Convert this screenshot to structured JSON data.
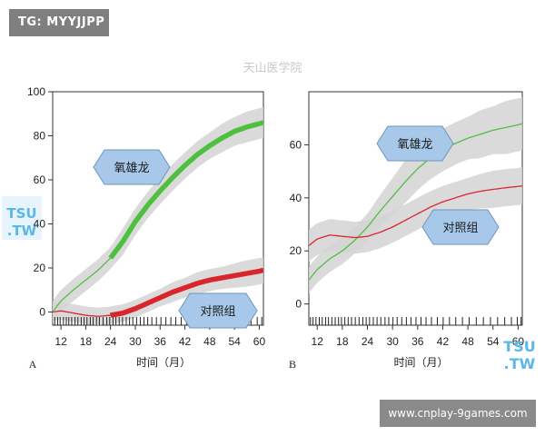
{
  "overlays": {
    "tg_badge": "TG: MYYJJPP",
    "site_badge": "www.cnplay-9games.com",
    "center_watermark": "天山医学院",
    "left_watermark": [
      "TSU",
      ".TW"
    ],
    "right_watermark": [
      "TSU",
      ".TW"
    ]
  },
  "chart_data": [
    {
      "type": "line",
      "panel_label": "A",
      "xlabel": "时间（月）",
      "ylabel": "",
      "xlim": [
        10,
        61
      ],
      "ylim": [
        -6,
        100
      ],
      "xticks": [
        12,
        18,
        24,
        30,
        36,
        42,
        48,
        54,
        60
      ],
      "yticks": [
        0,
        20,
        40,
        60,
        80,
        100
      ],
      "grid": false,
      "colors": {
        "oxandrolone": "#4fbf3f",
        "control": "#d9262c",
        "band": "#d3d3d3",
        "box": "#a7c8e8"
      },
      "callouts": [
        {
          "text": "氧雄龙",
          "series": "oxandrolone",
          "near": "upper-left"
        },
        {
          "text": "对照组",
          "series": "control",
          "near": "lower-right"
        }
      ],
      "series": [
        {
          "name": "氧雄龙",
          "x": [
            10,
            12,
            15,
            18,
            21,
            24,
            27,
            30,
            33,
            36,
            39,
            42,
            45,
            48,
            51,
            54,
            57,
            60,
            61
          ],
          "y": [
            0,
            5,
            10,
            14.5,
            19,
            24.5,
            32,
            41,
            48.5,
            55,
            61,
            66.5,
            71.5,
            75.5,
            79,
            82,
            84,
            85.5,
            86
          ],
          "band": [
            5,
            5,
            5,
            5,
            5,
            5,
            6,
            6,
            6,
            6,
            6,
            6,
            6,
            6,
            6.5,
            6.5,
            7,
            7,
            7
          ],
          "thick_from": 24
        },
        {
          "name": "对照组",
          "x": [
            10,
            12,
            15,
            18,
            21,
            24,
            27,
            30,
            33,
            36,
            39,
            42,
            45,
            48,
            51,
            54,
            57,
            60,
            61
          ],
          "y": [
            0,
            0.5,
            -0.5,
            -1.5,
            -2,
            -1.5,
            -0.5,
            1.5,
            4,
            6.5,
            9,
            11,
            13,
            14.5,
            15.5,
            16.5,
            17.5,
            18.5,
            19
          ],
          "band": [
            4,
            4,
            4,
            4,
            4,
            4,
            4,
            4,
            4,
            4,
            4.5,
            4.5,
            5,
            5,
            5,
            5.5,
            6,
            6,
            6
          ],
          "thick_from": 24
        }
      ],
      "rug_x": [
        10.5,
        11.2,
        11.8,
        12.6,
        13.3,
        13.9,
        14.6,
        15.4,
        16.1,
        16.9,
        17.6,
        18.3,
        19.1,
        19.8,
        20.6,
        21.3,
        22.2,
        23.1,
        23.8,
        24.6,
        25.3,
        26.1,
        26.9,
        27.8,
        28.6,
        29.4,
        30.3,
        31.2,
        32.1,
        33.0,
        34.0,
        35.1,
        36.2,
        37.4,
        38.6,
        39.8,
        41.1,
        42.4,
        43.8,
        45.1,
        46.6,
        48.1,
        49.7,
        51.3,
        52.9,
        54.6,
        56.3,
        58.0,
        59.5,
        60.6
      ]
    },
    {
      "type": "line",
      "panel_label": "B",
      "xlabel": "时间（月）",
      "ylabel": "",
      "xlim": [
        10,
        61
      ],
      "ylim": [
        -8,
        80
      ],
      "xticks": [
        12,
        18,
        24,
        30,
        36,
        42,
        48,
        54,
        60
      ],
      "yticks": [
        0,
        20,
        40,
        60
      ],
      "grid": false,
      "colors": {
        "oxandrolone": "#4fbf3f",
        "control": "#d9262c",
        "band": "#d3d3d3",
        "box": "#a7c8e8"
      },
      "callouts": [
        {
          "text": "氧雄龙",
          "series": "oxandrolone",
          "near": "upper-middle"
        },
        {
          "text": "对照组",
          "series": "control",
          "near": "middle-right"
        }
      ],
      "series": [
        {
          "name": "氧雄龙",
          "x": [
            10,
            12,
            15,
            18,
            21,
            24,
            27,
            30,
            33,
            36,
            39,
            42,
            45,
            48,
            51,
            54,
            57,
            60,
            61
          ],
          "y": [
            9,
            13,
            17,
            20,
            24,
            29,
            35,
            40.5,
            46,
            51,
            55,
            58,
            60.5,
            62.5,
            64,
            65.5,
            66.5,
            67.5,
            68
          ],
          "band": [
            5,
            5,
            5,
            5,
            5,
            5,
            6,
            7,
            8,
            8,
            8,
            8,
            8,
            8,
            9,
            9,
            10,
            10,
            10
          ]
        },
        {
          "name": "对照组",
          "x": [
            10,
            12,
            15,
            18,
            21,
            24,
            27,
            30,
            33,
            36,
            39,
            42,
            45,
            48,
            51,
            54,
            57,
            60,
            61
          ],
          "y": [
            22,
            24.5,
            26,
            25.5,
            25,
            25.5,
            27,
            29,
            31.5,
            34,
            36.5,
            38.5,
            40,
            41.5,
            42.5,
            43.2,
            43.8,
            44.3,
            44.5
          ],
          "band": [
            6,
            6,
            6,
            6,
            6,
            6,
            6,
            6,
            6,
            6,
            6,
            6,
            6,
            6,
            6.5,
            7,
            7,
            7,
            7
          ]
        }
      ],
      "rug_x": [
        10.4,
        11.0,
        11.7,
        12.5,
        13.2,
        14.0,
        14.7,
        15.5,
        16.3,
        17.1,
        17.8,
        18.6,
        19.4,
        20.2,
        21.1,
        22.0,
        22.9,
        23.7,
        24.5,
        25.4,
        26.3,
        27.2,
        28.2,
        29.1,
        30.1,
        31.1,
        32.2,
        33.3,
        34.4,
        35.6,
        36.8,
        38.0,
        39.3,
        40.7,
        42.1,
        43.6,
        45.1,
        46.7,
        48.3,
        50.0,
        51.7,
        53.4,
        55.1,
        56.8,
        58.4,
        59.8,
        60.7
      ]
    }
  ]
}
